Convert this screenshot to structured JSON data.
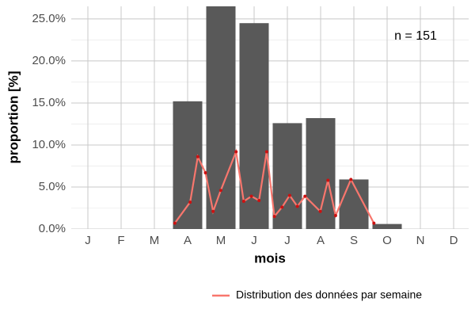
{
  "chart_data": {
    "type": "bar",
    "annotation": "n = 151",
    "x_label": "mois",
    "y_label": "proportion [%]",
    "categories": [
      "J",
      "F",
      "M",
      "A",
      "M",
      "J",
      "J",
      "A",
      "S",
      "O",
      "N",
      "D"
    ],
    "values": [
      0,
      0,
      0,
      15.2,
      26.5,
      24.5,
      12.6,
      13.2,
      5.9,
      0.6,
      0,
      0
    ],
    "color": "#595959",
    "ylim": [
      0,
      26.5
    ],
    "yticks": [
      {
        "value": 0,
        "label": "0.0%"
      },
      {
        "value": 5,
        "label": "5.0%"
      },
      {
        "value": 10,
        "label": "10.0%"
      },
      {
        "value": 15,
        "label": "15.0%"
      },
      {
        "value": 20,
        "label": "20.0%"
      },
      {
        "value": 25,
        "label": "25.0%"
      }
    ],
    "grid": true,
    "legend": "bottom-right",
    "line": {
      "name": "Distribution des données par semaine",
      "color": "#f8766d",
      "point_color": "#cc1111",
      "x": [
        14,
        16,
        17,
        18,
        19,
        20,
        22,
        23,
        24,
        25,
        26,
        27,
        28,
        29,
        30,
        31,
        33,
        34,
        35,
        37,
        40
      ],
      "values": [
        0.7,
        3.2,
        8.6,
        6.7,
        2.1,
        4.6,
        9.2,
        3.3,
        3.9,
        3.4,
        9.2,
        1.5,
        2.6,
        4.0,
        2.7,
        3.9,
        2.1,
        5.8,
        1.6,
        5.9,
        0.7
      ]
    }
  }
}
